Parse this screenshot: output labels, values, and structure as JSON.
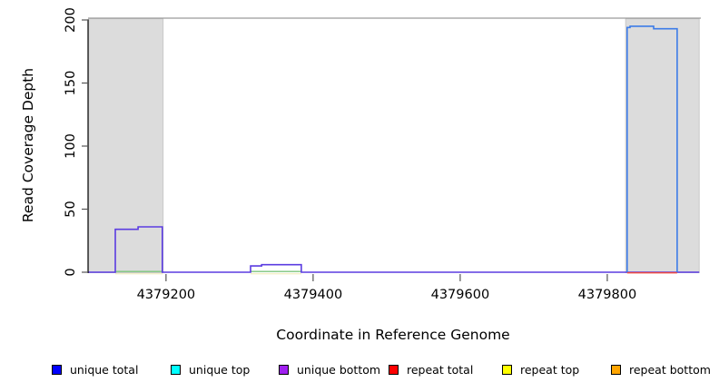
{
  "chart_data": {
    "type": "line",
    "subtype": "step-coverage-plot",
    "title": "",
    "xlabel": "Coordinate in Reference Genome",
    "ylabel": "Read Coverage Depth",
    "xlim": [
      4379094,
      4379926
    ],
    "ylim": [
      0,
      200
    ],
    "x_ticks": [
      4379200,
      4379400,
      4379600,
      4379800
    ],
    "x_tick_labels": [
      "4379200",
      "4379400",
      "4379600",
      "4379800"
    ],
    "y_ticks": [
      0,
      50,
      100,
      150,
      200
    ],
    "y_tick_labels": [
      "0",
      "50",
      "100",
      "150",
      "200"
    ],
    "grid": false,
    "legend_position": "bottom",
    "band_fill_color": "#dcdcdc",
    "band_border_color": "#c9c9c9",
    "top_border_color": "#9b9b9b",
    "shaded_regions": [
      {
        "name": "repeat-region-left",
        "x0": 4379095,
        "x1": 4379196
      },
      {
        "name": "repeat-region-right",
        "x0": 4379825,
        "x1": 4379925
      }
    ],
    "series": [
      {
        "name": "repeat top (visible pale-yellow baseline)",
        "color": "#f3efc8",
        "width": 1.4,
        "dy": 1.7,
        "segments": [
          [
            [
              4379131,
              0
            ],
            [
              4379196,
              0
            ]
          ],
          [
            [
              4379315,
              0
            ],
            [
              4379384,
              0
            ]
          ]
        ]
      },
      {
        "name": "unique top / repeat top overlap (visible green baseline)",
        "color": "#7cc57c",
        "width": 1.4,
        "dy": -0.8,
        "segments": [
          [
            [
              4379131,
              0
            ],
            [
              4379196,
              0
            ]
          ],
          [
            [
              4379315,
              0
            ],
            [
              4379384,
              0
            ]
          ]
        ]
      },
      {
        "name": "unique bottom (purple step trace with two low peaks)",
        "color": "#5b3ce1",
        "width": 1.6,
        "dy": 0,
        "segments": [
          [
            [
              4379094,
              0
            ],
            [
              4379131,
              0
            ],
            [
              4379131,
              34
            ],
            [
              4379162,
              34
            ],
            [
              4379162,
              36
            ],
            [
              4379195,
              36
            ],
            [
              4379195,
              0
            ],
            [
              4379315,
              0
            ],
            [
              4379315,
              5
            ],
            [
              4379330,
              5
            ],
            [
              4379330,
              6
            ],
            [
              4379384,
              6
            ],
            [
              4379384,
              0
            ],
            [
              4379925,
              0
            ]
          ]
        ]
      },
      {
        "name": "repeat total (visible red baseline under tall peak)",
        "color": "#ee4a43",
        "width": 1.5,
        "dy": 0.6,
        "segments": [
          [
            [
              4379827,
              0
            ],
            [
              4379895,
              0
            ]
          ]
        ]
      },
      {
        "name": "unique total (blue tall peak)",
        "color": "#3d7ce8",
        "width": 1.6,
        "dy": 0,
        "segments": [
          [
            [
              4379827,
              0
            ],
            [
              4379827,
              194
            ],
            [
              4379831,
              194
            ],
            [
              4379831,
              195
            ],
            [
              4379863,
              195
            ],
            [
              4379863,
              193
            ],
            [
              4379895,
              193
            ],
            [
              4379895,
              0
            ]
          ]
        ]
      }
    ],
    "legend": [
      {
        "label": "unique total",
        "color": "#0000ff"
      },
      {
        "label": "unique top",
        "color": "#00ffff"
      },
      {
        "label": "unique bottom",
        "color": "#a020f0"
      },
      {
        "label": "repeat total",
        "color": "#ff0000"
      },
      {
        "label": "repeat top",
        "color": "#ffff00"
      },
      {
        "label": "repeat bottom",
        "color": "#ffa500"
      }
    ]
  }
}
